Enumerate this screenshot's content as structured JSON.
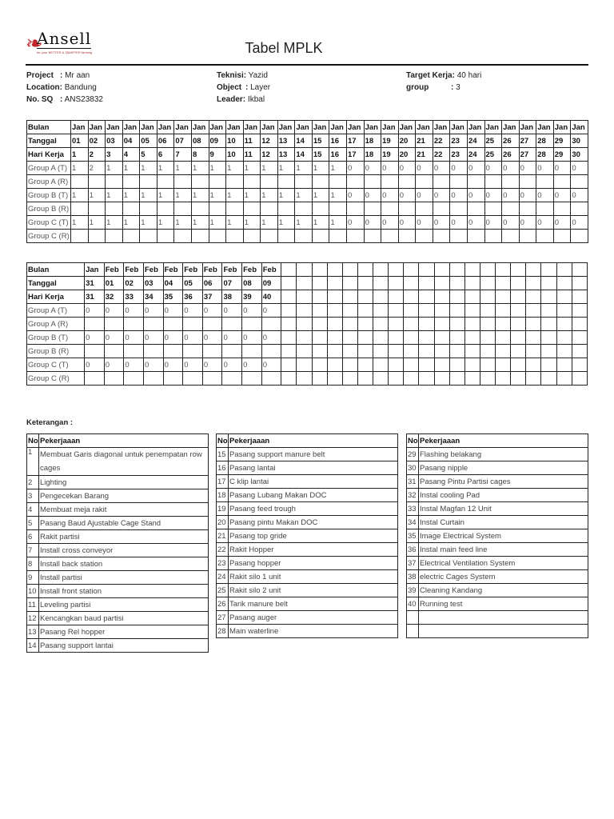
{
  "header": {
    "logo_text": "Ansell",
    "logo_tagline": "for your BETTER & SMARTER farming",
    "title": "Tabel MPLK"
  },
  "info": {
    "project_label": "Project",
    "project": "Mr aan",
    "location_label": "Location",
    "location": "Bandung",
    "nosq_label": "No. SQ",
    "nosq": "ANS23832",
    "teknisi_label": "Teknisi",
    "teknisi": "Yazid",
    "object_label": "Object",
    "object": "Layer",
    "leader_label": "Leader",
    "leader": "Ikbal",
    "target_label": "Target Kerja",
    "target": "40 hari",
    "group_label": "group",
    "group": "3"
  },
  "table1": {
    "labels": [
      "Bulan",
      "Tanggal",
      "Hari Kerja",
      "Group A (T)",
      "Group A (R)",
      "Group B (T)",
      "Group B (R)",
      "Group C (T)",
      "Group C (R)"
    ],
    "bulan": [
      "Jan",
      "Jan",
      "Jan",
      "Jan",
      "Jan",
      "Jan",
      "Jan",
      "Jan",
      "Jan",
      "Jan",
      "Jan",
      "Jan",
      "Jan",
      "Jan",
      "Jan",
      "Jan",
      "Jan",
      "Jan",
      "Jan",
      "Jan",
      "Jan",
      "Jan",
      "Jan",
      "Jan",
      "Jan",
      "Jan",
      "Jan",
      "Jan",
      "Jan",
      "Jan"
    ],
    "tanggal": [
      "01",
      "02",
      "03",
      "04",
      "05",
      "06",
      "07",
      "08",
      "09",
      "10",
      "11",
      "12",
      "13",
      "14",
      "15",
      "16",
      "17",
      "18",
      "19",
      "20",
      "21",
      "22",
      "23",
      "24",
      "25",
      "26",
      "27",
      "28",
      "29",
      "30"
    ],
    "hari_kerja": [
      "1",
      "2",
      "3",
      "4",
      "5",
      "6",
      "7",
      "8",
      "9",
      "10",
      "11",
      "12",
      "13",
      "14",
      "15",
      "16",
      "17",
      "18",
      "19",
      "20",
      "21",
      "22",
      "23",
      "24",
      "25",
      "26",
      "27",
      "28",
      "29",
      "30"
    ],
    "group_a_t": [
      "1",
      "2",
      "1",
      "1",
      "1",
      "1",
      "1",
      "1",
      "1",
      "1",
      "1",
      "1",
      "1",
      "1",
      "1",
      "1",
      "0",
      "0",
      "0",
      "0",
      "0",
      "0",
      "0",
      "0",
      "0",
      "0",
      "0",
      "0",
      "0",
      "0"
    ],
    "group_b_t": [
      "1",
      "1",
      "1",
      "1",
      "1",
      "1",
      "1",
      "1",
      "1",
      "1",
      "1",
      "1",
      "1",
      "1",
      "1",
      "1",
      "0",
      "0",
      "0",
      "0",
      "0",
      "0",
      "0",
      "0",
      "0",
      "0",
      "0",
      "0",
      "0",
      "0"
    ],
    "group_c_t": [
      "1",
      "1",
      "1",
      "1",
      "1",
      "1",
      "1",
      "1",
      "1",
      "1",
      "1",
      "1",
      "1",
      "1",
      "1",
      "1",
      "0",
      "0",
      "0",
      "0",
      "0",
      "0",
      "0",
      "0",
      "0",
      "0",
      "0",
      "0",
      "0",
      "0"
    ]
  },
  "table2": {
    "labels": [
      "Bulan",
      "Tanggal",
      "Hari Kerja",
      "Group A (T)",
      "Group A (R)",
      "Group B (T)",
      "Group B (R)",
      "Group C (T)",
      "Group C (R)"
    ],
    "bulan": [
      "Jan",
      "Feb",
      "Feb",
      "Feb",
      "Feb",
      "Feb",
      "Feb",
      "Feb",
      "Feb",
      "Feb"
    ],
    "tanggal": [
      "31",
      "01",
      "02",
      "03",
      "04",
      "05",
      "06",
      "07",
      "08",
      "09"
    ],
    "hari_kerja": [
      "31",
      "32",
      "33",
      "34",
      "35",
      "36",
      "37",
      "38",
      "39",
      "40"
    ],
    "group_a_t": [
      "0",
      "0",
      "0",
      "0",
      "0",
      "0",
      "0",
      "0",
      "0",
      "0"
    ],
    "group_b_t": [
      "0",
      "0",
      "0",
      "0",
      "0",
      "0",
      "0",
      "0",
      "0",
      "0"
    ],
    "group_c_t": [
      "0",
      "0",
      "0",
      "0",
      "0",
      "0",
      "0",
      "0",
      "0",
      "0"
    ]
  },
  "keterangan": {
    "title": "Keterangan :",
    "col_no": "No",
    "col_task": "Pekerjaaan",
    "lists": [
      [
        [
          "1",
          "Membuat Garis diagonal untuk penempatan row cages"
        ],
        [
          "2",
          "Lighting"
        ],
        [
          "3",
          "Pengecekan Barang"
        ],
        [
          "4",
          "Membuat meja rakit"
        ],
        [
          "5",
          "Pasang Baud Ajustable Cage Stand"
        ],
        [
          "6",
          "Rakit partisi"
        ],
        [
          "7",
          "Install cross conveyor"
        ],
        [
          "8",
          "Install back station"
        ],
        [
          "9",
          "Install partisi"
        ],
        [
          "10",
          "Install front station"
        ],
        [
          "11",
          "Leveling partisi"
        ],
        [
          "12",
          "Kencangkan baud partisi"
        ],
        [
          "13",
          "Pasang Rel hopper"
        ],
        [
          "14",
          "Pasang support lantai"
        ]
      ],
      [
        [
          "15",
          "Pasang support manure belt"
        ],
        [
          "16",
          "Pasang lantai"
        ],
        [
          "17",
          "C klip lantai"
        ],
        [
          "18",
          "Pasang Lubang Makan DOC"
        ],
        [
          "19",
          "Pasang feed trough"
        ],
        [
          "20",
          "Pasang pintu Makan DOC"
        ],
        [
          "21",
          "Pasang top gride"
        ],
        [
          "22",
          "Rakit Hopper"
        ],
        [
          "23",
          "Pasang hopper"
        ],
        [
          "24",
          "Rakit silo 1 unit"
        ],
        [
          "25",
          "Rakit silo 2 unit"
        ],
        [
          "26",
          "Tarik manure belt"
        ],
        [
          "27",
          "Pasang auger"
        ],
        [
          "28",
          "Main waterline"
        ]
      ],
      [
        [
          "29",
          "Flashing belakang"
        ],
        [
          "30",
          "Pasang nipple"
        ],
        [
          "31",
          "Pasang Pintu Partisi cages"
        ],
        [
          "32",
          "Instal cooling Pad"
        ],
        [
          "33",
          "Instal Magfan 12 Unit"
        ],
        [
          "34",
          "Instal Curtain"
        ],
        [
          "35",
          "Image Electrical System"
        ],
        [
          "36",
          "Instal main feed line"
        ],
        [
          "37",
          "Electrical Ventilation System"
        ],
        [
          "38",
          "electric Cages System"
        ],
        [
          "39",
          "Cleaning Kandang"
        ],
        [
          "40",
          "Running test"
        ],
        [
          "",
          ""
        ],
        [
          "",
          ""
        ]
      ]
    ]
  }
}
